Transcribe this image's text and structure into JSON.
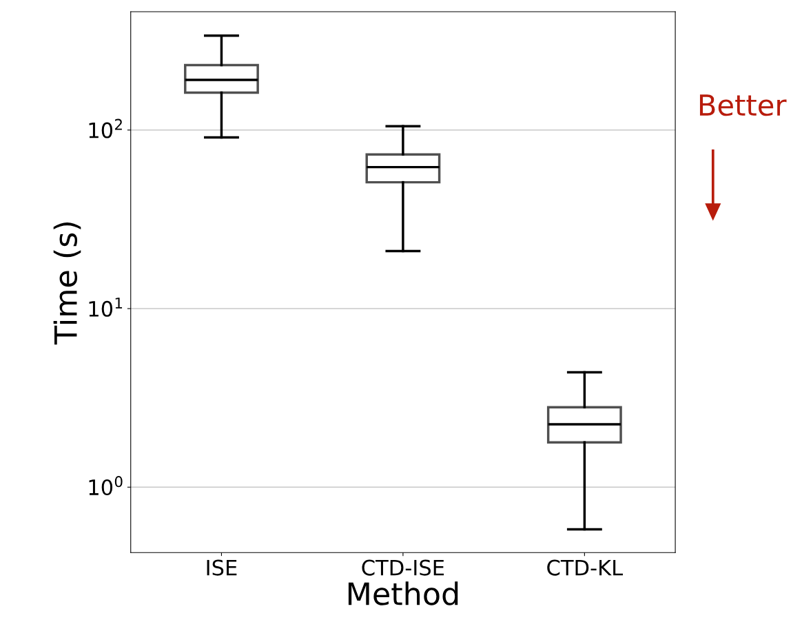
{
  "chart_data": {
    "type": "box",
    "xlabel": "Method",
    "ylabel": "Time (s)",
    "categories": [
      "ISE",
      "CTD-ISE",
      "CTD-KL"
    ],
    "boxes": [
      {
        "low": 91,
        "q1": 162,
        "median": 191,
        "q3": 231,
        "high": 338
      },
      {
        "low": 21,
        "q1": 51,
        "median": 62,
        "q3": 73,
        "high": 105
      },
      {
        "low": 0.58,
        "q1": 1.78,
        "median": 2.25,
        "q3": 2.8,
        "high": 4.4
      }
    ],
    "log": true,
    "ylim": [
      0.43,
      460
    ],
    "yticks": [
      {
        "value": 1,
        "label": "10$^{0}$"
      },
      {
        "value": 10,
        "label": "10$^{1}$"
      },
      {
        "value": 100,
        "label": "10$^{2}$"
      }
    ],
    "grid": "y",
    "annotations": [
      "Better"
    ]
  }
}
